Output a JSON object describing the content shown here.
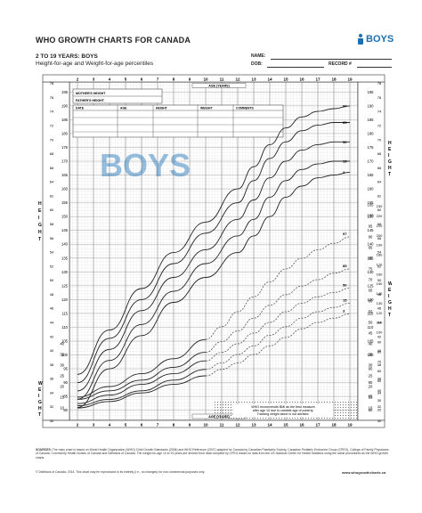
{
  "header": {
    "title": "WHO GROWTH CHARTS FOR CANADA",
    "logo_text": "BOYS",
    "subtitle": "2 TO 19 YEARS: BOYS",
    "subtitle2": "Height-for-age and Weight-for-age percentiles",
    "name_label": "NAME:",
    "dob_label": "DOB:",
    "record_label": "RECORD #"
  },
  "form": {
    "mothers_height": "MOTHER'S HEIGHT",
    "fathers_height": "FATHER'S HEIGHT",
    "date": "DATE",
    "age": "AGE",
    "height": "HEIGHT",
    "weight": "WEIGHT",
    "comments": "COMMENTS",
    "age_years": "AGE (YEARS)"
  },
  "watermark": "BOYS",
  "note": [
    "WHO recommends BMI as the best measure",
    "after age 10 due to variable age of puberty.",
    "Tracking weight alone is not advised."
  ],
  "footer": {
    "source_label": "SOURCES:",
    "source": "The main chart is based on World Health Organization (WHO) Child Growth Standards (2006) and WHO Reference (2007) adapted for Canada by Canadian Paediatric Society, Canadian Pediatric Endocrine Group (CPEG), College of Family Physicians of Canada, Community Health Nurses of Canada and Dietitians of Canada. The weight-for-age 10 to 19 years are derived from data compiled by CPEG based on data from the US National Center for Health Statistics using the same procedures as the WHO growth charts.",
    "copyright": "© Dietitians of Canada, 2014. This chart may be reproduced in its entirety (i.e., no changes) for non-commercial purposes only.",
    "url": "www.whogrowthcharts.ca"
  },
  "chart_data": {
    "type": "line",
    "x_ticks": [
      2,
      3,
      4,
      5,
      6,
      7,
      8,
      9,
      10,
      11,
      12,
      13,
      14,
      15,
      16,
      17,
      18,
      19
    ],
    "xlabel": "AGE (YEARS)",
    "height_axis": {
      "label": "HEIGHT",
      "cm_ticks": [
        80,
        85,
        90,
        95,
        100,
        105,
        110,
        115,
        120,
        125,
        130,
        135,
        140,
        145,
        150,
        155,
        160,
        165,
        170,
        175,
        180,
        185,
        190,
        195
      ],
      "in_ticks": [
        30,
        32,
        34,
        36,
        38,
        40,
        42,
        44,
        46,
        48,
        50,
        52,
        54,
        56,
        58,
        60,
        62,
        64,
        66,
        68,
        70,
        72,
        74,
        76,
        78
      ],
      "ylim_cm": [
        77,
        198
      ],
      "series": [
        {
          "name": "97",
          "x": [
            2,
            4,
            6,
            8,
            10,
            12,
            13,
            14,
            15,
            16,
            17,
            18,
            19
          ],
          "values": [
            93,
            109,
            124,
            137,
            148,
            160,
            168,
            176,
            182,
            186,
            188,
            189,
            190
          ]
        },
        {
          "name": "85",
          "x": [
            2,
            4,
            6,
            8,
            10,
            12,
            13,
            14,
            15,
            16,
            17,
            18,
            19
          ],
          "values": [
            90,
            106,
            120,
            133,
            144,
            155,
            163,
            171,
            177,
            181,
            183,
            184,
            184
          ]
        },
        {
          "name": "50",
          "x": [
            2,
            4,
            6,
            8,
            10,
            12,
            13,
            14,
            15,
            16,
            17,
            18,
            19
          ],
          "values": [
            87,
            102,
            116,
            128,
            138,
            149,
            156,
            164,
            170,
            174,
            176,
            177,
            177
          ]
        },
        {
          "name": "15",
          "x": [
            2,
            4,
            6,
            8,
            10,
            12,
            13,
            14,
            15,
            16,
            17,
            18,
            19
          ],
          "values": [
            84,
            98,
            111,
            123,
            133,
            143,
            149,
            157,
            163,
            167,
            169,
            170,
            170
          ]
        },
        {
          "name": "3",
          "x": [
            2,
            4,
            6,
            8,
            10,
            12,
            13,
            14,
            15,
            16,
            17,
            18,
            19
          ],
          "values": [
            81,
            95,
            107,
            119,
            128,
            137,
            143,
            150,
            157,
            161,
            164,
            165,
            166
          ]
        }
      ]
    },
    "weight_axis": {
      "label": "WEIGHT",
      "kg_ticks": [
        10,
        15,
        20,
        25,
        30,
        35,
        40,
        45,
        50,
        55,
        60,
        65,
        70,
        75,
        80,
        85,
        90,
        95,
        100,
        105
      ],
      "lb_ticks": [
        20,
        30,
        40,
        50,
        60,
        70,
        80,
        90,
        100,
        110,
        120,
        130,
        140,
        150,
        160,
        170,
        180,
        190,
        200,
        210,
        220,
        230
      ],
      "ylim_kg": [
        5,
        105
      ],
      "series": [
        {
          "name": "97",
          "x": [
            2,
            4,
            6,
            8,
            10,
            11,
            12,
            13,
            14,
            15,
            16,
            17,
            18,
            19
          ],
          "values": [
            15,
            20,
            26,
            33,
            42,
            48,
            55,
            62,
            69,
            75,
            80,
            84,
            87,
            90
          ]
        },
        {
          "name": "85",
          "x": [
            2,
            4,
            6,
            8,
            10,
            11,
            12,
            13,
            14,
            15,
            16,
            17,
            18,
            19
          ],
          "values": [
            14,
            18,
            23,
            29,
            36,
            41,
            46,
            52,
            58,
            63,
            67,
            70,
            73,
            75
          ]
        },
        {
          "name": "50",
          "x": [
            2,
            4,
            6,
            8,
            10,
            11,
            12,
            13,
            14,
            15,
            16,
            17,
            18,
            19
          ],
          "values": [
            12,
            16,
            21,
            26,
            32,
            36,
            40,
            45,
            50,
            55,
            59,
            62,
            64,
            66
          ]
        },
        {
          "name": "15",
          "x": [
            2,
            4,
            6,
            8,
            10,
            11,
            12,
            13,
            14,
            15,
            16,
            17,
            18,
            19
          ],
          "values": [
            11,
            14,
            18,
            23,
            28,
            31,
            35,
            39,
            44,
            48,
            52,
            55,
            57,
            59
          ]
        },
        {
          "name": "3",
          "x": [
            2,
            4,
            6,
            8,
            10,
            11,
            12,
            13,
            14,
            15,
            16,
            17,
            18,
            19
          ],
          "values": [
            10,
            13,
            17,
            21,
            25,
            28,
            31,
            35,
            39,
            43,
            47,
            50,
            52,
            54
          ]
        }
      ]
    }
  }
}
